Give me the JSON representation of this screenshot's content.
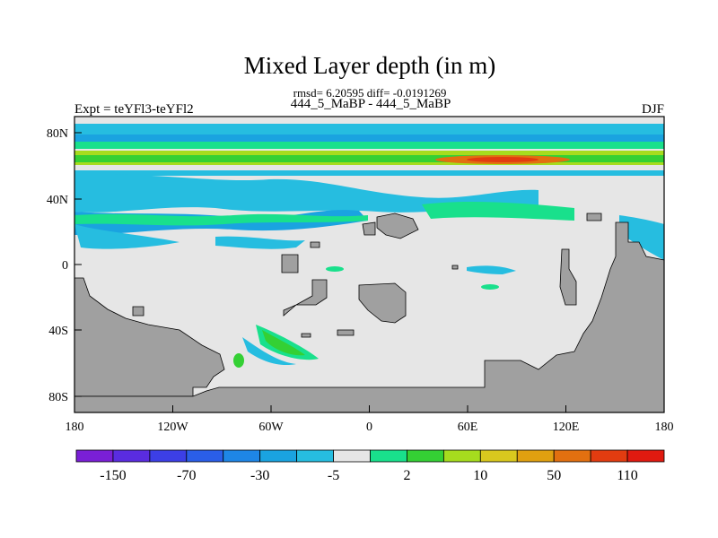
{
  "chart_data": {
    "type": "heatmap",
    "title": "Mixed Layer depth (in m)",
    "subtitle": "rmsd= 6.20595 diff= -0.0191269",
    "left_label": "Expt = teYFl3-teYFl2",
    "center_label": "444_5_MaBP - 444_5_MaBP",
    "right_label": "DJF",
    "x_ticks": [
      "180",
      "120W",
      "60W",
      "0",
      "60E",
      "120E",
      "180"
    ],
    "y_ticks": [
      "80N",
      "40N",
      "0",
      "40S",
      "80S"
    ],
    "xlim": [
      -180,
      180
    ],
    "ylim": [
      -90,
      90
    ],
    "colorbar": {
      "colors": [
        "#7a1fd6",
        "#5a2ce0",
        "#3c3fe6",
        "#2a5ee8",
        "#1e86e6",
        "#1aa3e0",
        "#26bde0",
        "#e6e6e6",
        "#19e08c",
        "#34d034",
        "#a6dc1e",
        "#d9c81e",
        "#e0a010",
        "#e27010",
        "#e23c10",
        "#e01a10"
      ],
      "labels": [
        "-150",
        "-70",
        "-30",
        "-5",
        "2",
        "10",
        "50",
        "110"
      ]
    },
    "colors": {
      "land": "#a0a0a0",
      "neutral": "#e6e6e6"
    }
  }
}
